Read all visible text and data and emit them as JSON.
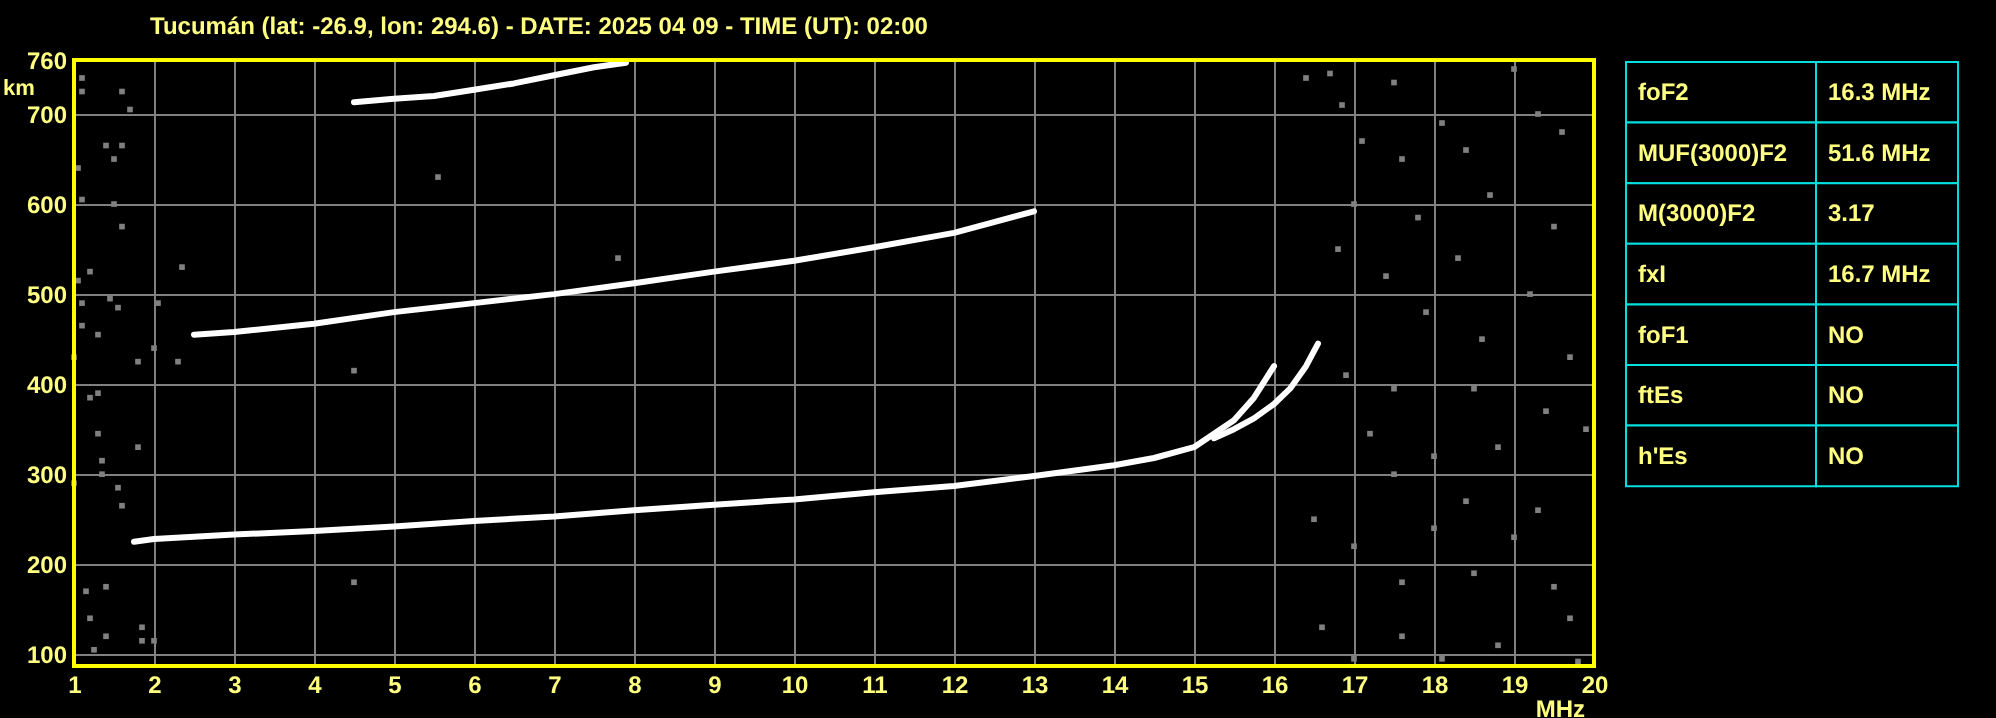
{
  "chart_data": [
    {
      "type": "scatter",
      "title": "Tucumán (lat: -26.9, lon: 294.6) - DATE: 2025 04 09 - TIME (UT): 02:00",
      "xlabel": "MHz",
      "ylabel": "km",
      "xlim": [
        1,
        20
      ],
      "xticks": [
        1,
        2,
        3,
        4,
        5,
        6,
        7,
        8,
        9,
        10,
        11,
        12,
        13,
        14,
        15,
        16,
        17,
        18,
        19,
        20
      ],
      "ylim": [
        87,
        760
      ],
      "yticks": [
        100,
        200,
        300,
        400,
        500,
        600,
        700,
        760
      ],
      "grid": true,
      "series": [
        {
          "type": "line",
          "color": "#ffffff",
          "x": [
            1.75,
            2,
            3,
            4,
            5,
            6,
            7,
            8,
            9,
            10,
            11,
            12,
            13,
            14,
            14.5,
            15,
            15.25,
            15.5,
            15.75,
            16
          ],
          "values": [
            225,
            228,
            233,
            237,
            242,
            248,
            253,
            260,
            266,
            272,
            280,
            287,
            298,
            310,
            318,
            330,
            345,
            360,
            385,
            420
          ]
        },
        {
          "type": "line",
          "color": "#ffffff",
          "x": [
            15.25,
            15.5,
            15.75,
            16,
            16.2,
            16.4,
            16.55
          ],
          "values": [
            340,
            350,
            362,
            378,
            395,
            420,
            445
          ]
        },
        {
          "type": "line",
          "color": "#ffffff",
          "x": [
            2.5,
            3,
            4,
            5,
            6,
            7,
            8,
            9,
            10,
            11,
            12,
            12.5,
            13
          ],
          "values": [
            455,
            458,
            467,
            480,
            490,
            500,
            512,
            525,
            537,
            552,
            568,
            580,
            592
          ]
        },
        {
          "type": "line",
          "color": "#ffffff",
          "x": [
            4.5,
            5,
            5.5,
            6,
            6.5,
            7,
            7.5,
            7.9
          ],
          "values": [
            713,
            717,
            720,
            727,
            734,
            743,
            752,
            757
          ]
        },
        {
          "type": "scatter",
          "color": "#808080",
          "marker": "square",
          "x": [
            1.1,
            1.1,
            1.6,
            1.7,
            1.05,
            1.4,
            1.5,
            1.6,
            1.1,
            1.5,
            1.6,
            1.05,
            1.1,
            1.2,
            1.45,
            1.55,
            1.0,
            1.1,
            1.3,
            1.3,
            1.2,
            1.3,
            1.35,
            1.35,
            1.55,
            1.6,
            1.0,
            1.8,
            1.15,
            1.4,
            1.2,
            1.25,
            1.4,
            1.85,
            2.0,
            1.85,
            2.05,
            2.0,
            2.3,
            2.35,
            1.8,
            5.55,
            4.5,
            4.5,
            7.8,
            16.4,
            16.7,
            16.85,
            17.5,
            18.1,
            19.0,
            19.3,
            17.1,
            17.6,
            18.4,
            19.6,
            17.0,
            17.8,
            18.7,
            19.5,
            16.8,
            17.4,
            18.3,
            19.2,
            17.9,
            18.6,
            19.7,
            16.9,
            17.5,
            18.5,
            19.4,
            17.2,
            18.0,
            18.8,
            19.9,
            17.5,
            18.4,
            19.3,
            16.5,
            17.0,
            18.0,
            19.0,
            17.6,
            18.5,
            19.5,
            16.6,
            17.6,
            18.8,
            19.7,
            17.0,
            18.1,
            19.8
          ],
          "values": [
            740,
            725,
            725,
            705,
            640,
            665,
            650,
            665,
            605,
            600,
            575,
            515,
            490,
            525,
            495,
            485,
            430,
            465,
            455,
            390,
            385,
            345,
            315,
            300,
            285,
            265,
            290,
            330,
            170,
            175,
            140,
            105,
            120,
            115,
            115,
            130,
            490,
            440,
            425,
            530,
            425,
            630,
            415,
            180,
            540,
            740,
            745,
            710,
            735,
            690,
            750,
            700,
            670,
            650,
            660,
            680,
            600,
            585,
            610,
            575,
            550,
            520,
            540,
            500,
            480,
            450,
            430,
            410,
            395,
            395,
            370,
            345,
            320,
            330,
            350,
            300,
            270,
            260,
            250,
            220,
            240,
            230,
            180,
            190,
            175,
            130,
            120,
            110,
            140,
            95,
            95,
            92
          ]
        }
      ]
    },
    {
      "type": "other",
      "annotations": [
        "foF2",
        "16.3 MHz",
        "MUF(3000)F2",
        "51.6 MHz",
        "M(3000)F2",
        "3.17",
        "fxI",
        "16.7 MHz",
        "foF1",
        "NO",
        "ftEs",
        "NO",
        "h'Es",
        "NO"
      ]
    }
  ]
}
